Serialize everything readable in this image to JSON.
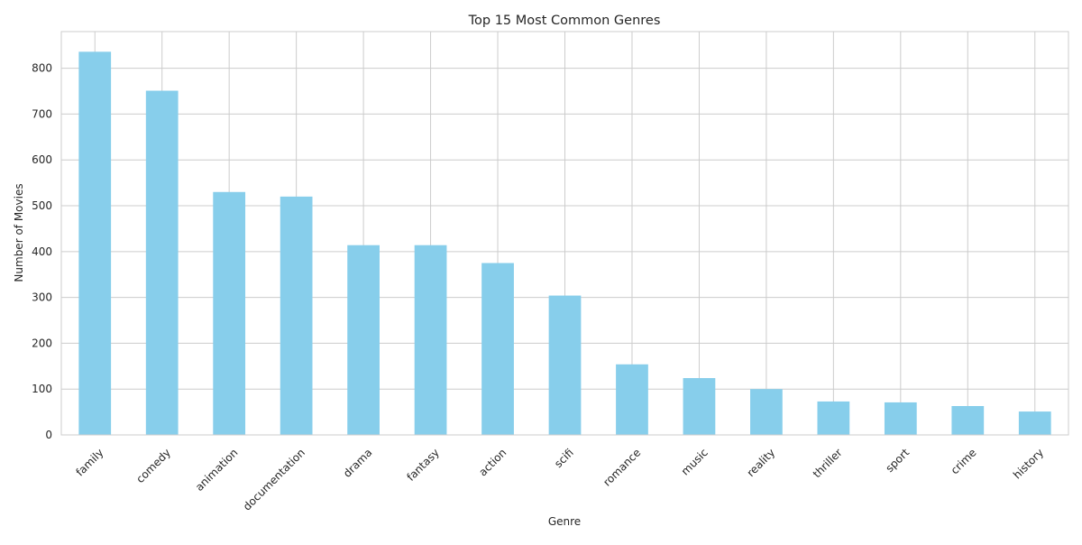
{
  "chart_data": {
    "type": "bar",
    "title": "Top 15 Most Common Genres",
    "xlabel": "Genre",
    "ylabel": "Number of Movies",
    "categories": [
      "family",
      "comedy",
      "animation",
      "documentation",
      "drama",
      "fantasy",
      "action",
      "scifi",
      "romance",
      "music",
      "reality",
      "thriller",
      "sport",
      "crime",
      "history"
    ],
    "values": [
      836,
      751,
      530,
      520,
      414,
      414,
      375,
      304,
      154,
      124,
      100,
      73,
      71,
      63,
      51
    ],
    "ylim": [
      0,
      880
    ],
    "yticks": [
      0,
      100,
      200,
      300,
      400,
      500,
      600,
      700,
      800
    ],
    "grid": true,
    "legend": "none",
    "colors": {
      "bar": "#87ceeb",
      "grid": "#cccccc",
      "axis": "#cccccc",
      "text": "#262626"
    }
  }
}
